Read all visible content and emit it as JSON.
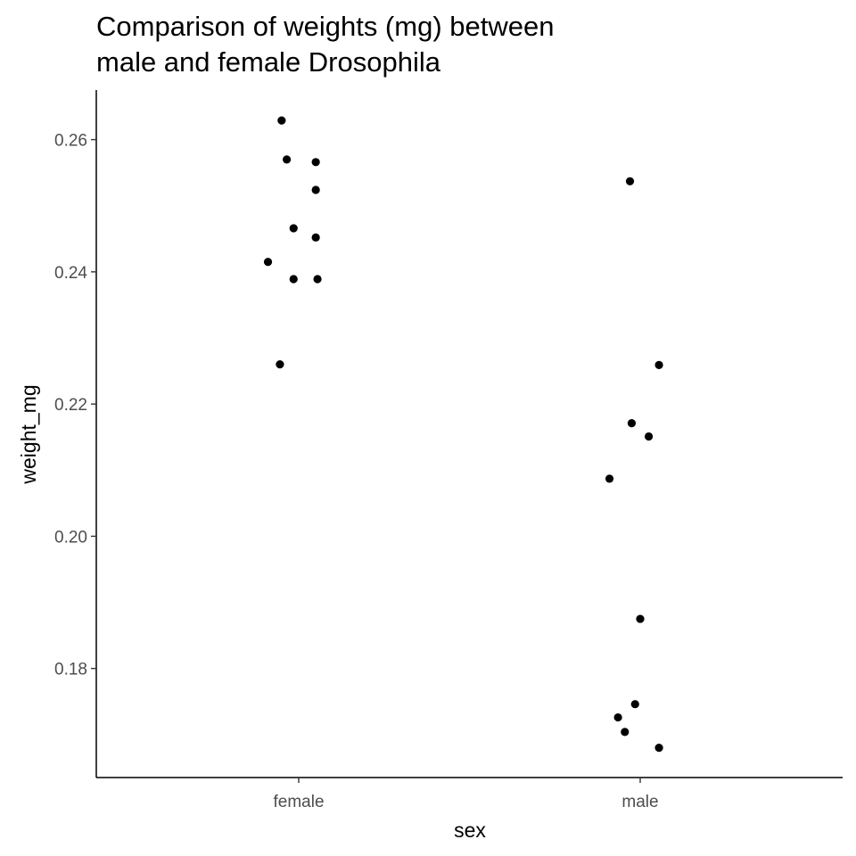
{
  "chart_data": {
    "type": "scatter",
    "title_lines": [
      "Comparison of weights (mg) between",
      "male and female Drosophila"
    ],
    "xlabel": "sex",
    "ylabel": "weight_mg",
    "categories": [
      "female",
      "male"
    ],
    "ylim": [
      0.1635,
      0.2675
    ],
    "yticks": [
      0.18,
      0.2,
      0.22,
      0.24,
      0.26
    ],
    "ytick_labels": [
      "0.18",
      "0.20",
      "0.22",
      "0.24",
      "0.26"
    ],
    "grid": false,
    "legend": "none",
    "point_color": "#000000",
    "series": [
      {
        "category": "female",
        "points": [
          {
            "jitter": -0.05,
            "y": 0.2629
          },
          {
            "jitter": -0.035,
            "y": 0.257
          },
          {
            "jitter": 0.05,
            "y": 0.2566
          },
          {
            "jitter": 0.05,
            "y": 0.2524
          },
          {
            "jitter": -0.015,
            "y": 0.2466
          },
          {
            "jitter": 0.05,
            "y": 0.2452
          },
          {
            "jitter": -0.09,
            "y": 0.2415
          },
          {
            "jitter": -0.015,
            "y": 0.2389
          },
          {
            "jitter": 0.055,
            "y": 0.2389
          },
          {
            "jitter": -0.055,
            "y": 0.226
          }
        ]
      },
      {
        "category": "male",
        "points": [
          {
            "jitter": -0.03,
            "y": 0.2537
          },
          {
            "jitter": 0.055,
            "y": 0.2259
          },
          {
            "jitter": -0.025,
            "y": 0.2171
          },
          {
            "jitter": 0.025,
            "y": 0.2151
          },
          {
            "jitter": -0.09,
            "y": 0.2087
          },
          {
            "jitter": 0.0,
            "y": 0.1875
          },
          {
            "jitter": -0.015,
            "y": 0.1746
          },
          {
            "jitter": -0.065,
            "y": 0.1726
          },
          {
            "jitter": -0.045,
            "y": 0.1704
          },
          {
            "jitter": 0.055,
            "y": 0.168
          }
        ]
      }
    ]
  }
}
